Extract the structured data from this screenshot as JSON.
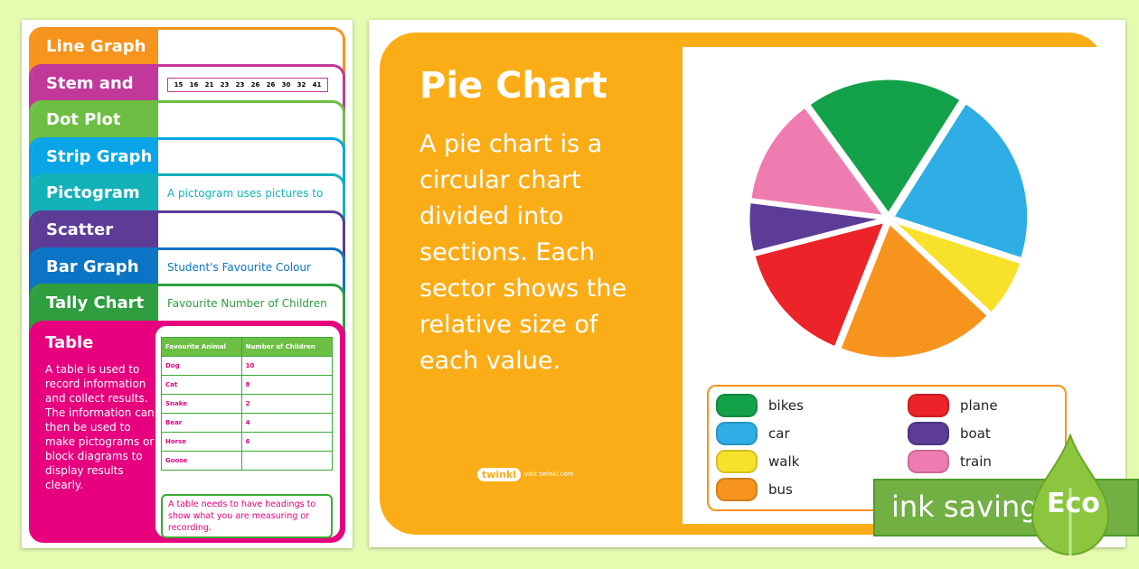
{
  "cards": [
    {
      "label": "Line Graph",
      "color": "#f7941d",
      "body": ""
    },
    {
      "label": "Stem and",
      "color": "#c2389a",
      "body": "",
      "numbers": [
        "15",
        "16",
        "21",
        "23",
        "23",
        "26",
        "26",
        "30",
        "32",
        "41"
      ]
    },
    {
      "label": "Dot Plot",
      "color": "#6dbf44",
      "body": ""
    },
    {
      "label": "Strip Graph",
      "color": "#0aa5e6",
      "body": ""
    },
    {
      "label": "Pictogram",
      "color": "#13b1b8",
      "body": "A pictogram uses pictures to"
    },
    {
      "label": "Scatter",
      "color": "#5c3c97",
      "body": ""
    },
    {
      "label": "Bar Graph",
      "color": "#0b74c4",
      "body": "Student's Favourite Colour"
    },
    {
      "label": "Tally Chart",
      "color": "#2e9e3f",
      "body": "Favourite     Number of Children"
    }
  ],
  "table_card": {
    "title": "Table",
    "text": "A table is used to record information and collect results. The information can then be used to make pictograms or block diagrams to display results clearly.",
    "headers": [
      "Favourite Animal",
      "Number of Children"
    ],
    "rows": [
      [
        "Dog",
        "10"
      ],
      [
        "Cat",
        "8"
      ],
      [
        "Snake",
        "2"
      ],
      [
        "Bear",
        "4"
      ],
      [
        "Horse",
        "6"
      ],
      [
        "Goose",
        ""
      ]
    ],
    "note": "A table needs to have headings to show what you are measuring or recording."
  },
  "poster": {
    "title": "Pie Chart",
    "description": "A pie chart is a circular chart divided into sections. Each sector shows the relative size of each value.",
    "logo": "twinkl",
    "logo_url_text": "visit twinkl.com"
  },
  "eco": {
    "label": "ink saving",
    "badge": "Eco"
  },
  "chart_data": {
    "type": "pie",
    "categories": [
      "bikes",
      "car",
      "walk",
      "bus",
      "plane",
      "boat",
      "train"
    ],
    "values": [
      19,
      21,
      7,
      19,
      15,
      6,
      13
    ],
    "colors": [
      "#13a14a",
      "#2eaee4",
      "#f8e12a",
      "#f7941d",
      "#ec2329",
      "#5c3c97",
      "#ef7cb0"
    ],
    "legend": "bottom"
  }
}
